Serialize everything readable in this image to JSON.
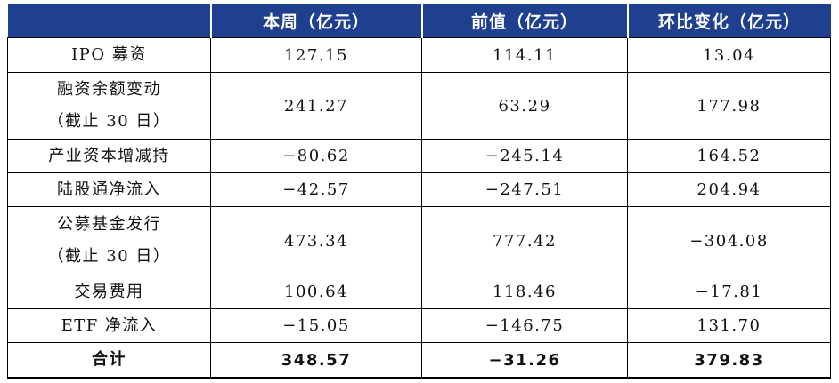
{
  "table": {
    "headers": [
      "",
      "本周（亿元）",
      "前值（亿元）",
      "环比变化（亿元）"
    ],
    "rows": [
      {
        "label": [
          "IPO 募资"
        ],
        "values": [
          "127.15",
          "114.11",
          "13.04"
        ]
      },
      {
        "label": [
          "融资余额变动",
          "（截止 30 日）"
        ],
        "values": [
          "241.27",
          "63.29",
          "177.98"
        ]
      },
      {
        "label": [
          "产业资本增减持"
        ],
        "values": [
          "−80.62",
          "−245.14",
          "164.52"
        ]
      },
      {
        "label": [
          "陆股通净流入"
        ],
        "values": [
          "−42.57",
          "−247.51",
          "204.94"
        ]
      },
      {
        "label": [
          "公募基金发行",
          "（截止 30 日）"
        ],
        "values": [
          "473.34",
          "777.42",
          "−304.08"
        ]
      },
      {
        "label": [
          "交易费用"
        ],
        "values": [
          "100.64",
          "118.46",
          "−17.81"
        ]
      },
      {
        "label": [
          "ETF 净流入"
        ],
        "values": [
          "−15.05",
          "−146.75",
          "131.70"
        ]
      },
      {
        "label": [
          "合计"
        ],
        "values": [
          "348.57",
          "−31.26",
          "379.83"
        ]
      }
    ]
  },
  "colors": {
    "header_bg": "#1f3f8f",
    "header_text": "#ffffff",
    "border": "#000000"
  }
}
